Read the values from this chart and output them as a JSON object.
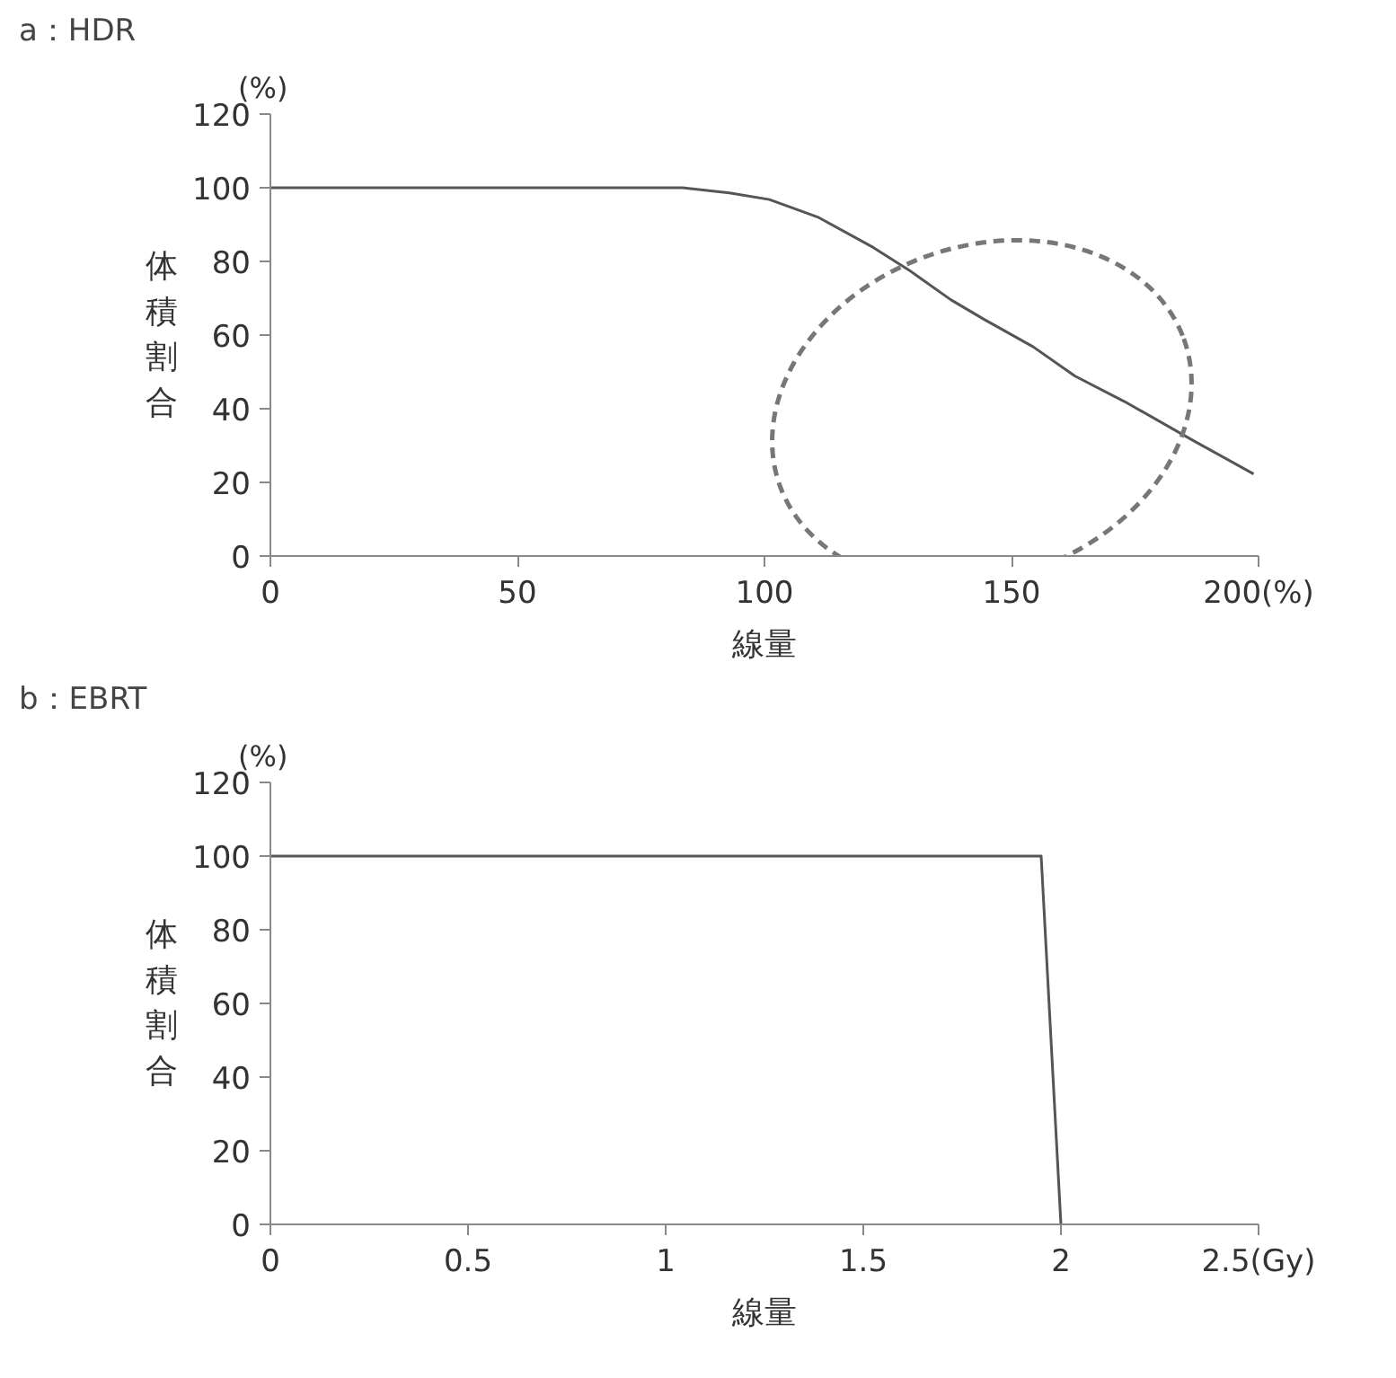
{
  "chart_data": [
    {
      "type": "line",
      "title": "a：HDR",
      "xlabel": "線量",
      "ylabel": "体積割合",
      "annotations": [
        "(%)"
      ],
      "x": [
        0,
        83.5,
        92.9,
        101,
        111,
        122,
        129.4,
        137.7,
        144.4,
        154.4,
        162.8,
        172.8,
        187,
        199
      ],
      "series": [
        {
          "color": "#555555",
          "values": [
            100,
            100,
            98.6,
            96.8,
            91.9,
            83.8,
            77.5,
            69.6,
            64.3,
            56.8,
            48.9,
            42,
            31.2,
            22.3
          ]
        }
      ],
      "xlim": [
        0,
        200
      ],
      "xticks": [
        0,
        50,
        100,
        150,
        {
          "value": 200,
          "label": "200(%)"
        }
      ],
      "ylim": [
        0,
        120
      ],
      "yticks": [
        0,
        20,
        40,
        60,
        80,
        100,
        120
      ],
      "grid": false,
      "marker": "none",
      "line_style": "solid"
    },
    {
      "type": "line",
      "title": "b：EBRT",
      "xlabel": "線量",
      "ylabel": "体積割合",
      "annotations": [
        "(%)"
      ],
      "x": [
        0,
        1.95,
        2.0
      ],
      "series": [
        {
          "color": "#555555",
          "values": [
            100,
            100,
            0
          ]
        }
      ],
      "xlim": [
        0,
        2.5
      ],
      "xticks": [
        0,
        0.5,
        1,
        1.5,
        2,
        {
          "value": 2.5,
          "label": "2.5(Gy)"
        }
      ],
      "ylim": [
        0,
        120
      ],
      "yticks": [
        0,
        20,
        40,
        60,
        80,
        100,
        120
      ],
      "grid": false,
      "marker": "none",
      "line_style": "solid"
    }
  ]
}
